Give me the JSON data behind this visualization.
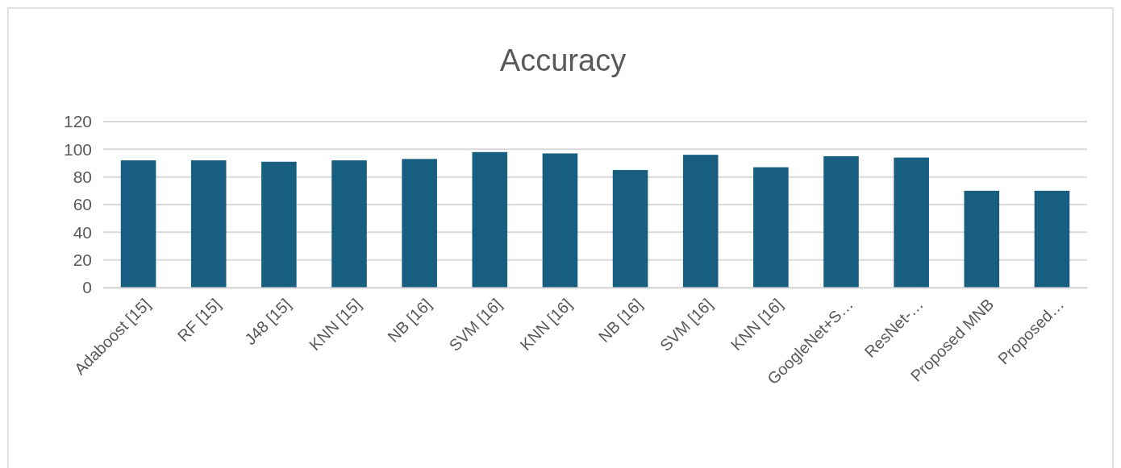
{
  "chart_data": {
    "type": "bar",
    "title": "Accuracy",
    "categories": [
      "Adaboost [15]",
      "RF [15]",
      "J48 [15]",
      "KNN [15]",
      "NB [16]",
      "SVM [16]",
      "KNN [16]",
      "NB [16]",
      "SVM [16]",
      "KNN [16]",
      "GoogleNet+S…",
      "ResNet-…",
      "Proposed MNB",
      "Proposed…"
    ],
    "values": [
      92,
      92,
      91,
      92,
      93,
      98,
      97,
      85,
      96,
      87,
      95,
      94,
      70,
      70
    ],
    "color": "#175e80",
    "ylim": [
      0,
      120
    ],
    "yticks": [
      0,
      20,
      40,
      60,
      80,
      100,
      120
    ],
    "grid": "y"
  }
}
